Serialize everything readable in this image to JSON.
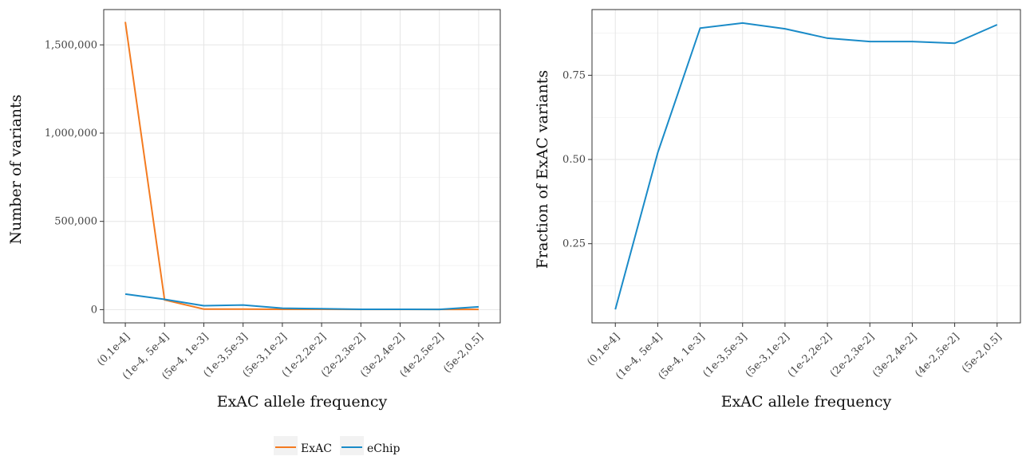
{
  "legend": {
    "items": [
      {
        "label": "ExAC",
        "color": "#f47b20"
      },
      {
        "label": "eChip",
        "color": "#1a8bc8"
      }
    ]
  },
  "chart_data": [
    {
      "type": "line",
      "xlabel": "ExAC allele frequency",
      "ylabel": "Number of variants",
      "categories": [
        "(0,1e-4]",
        "(1e-4, 5e-4]",
        "(5e-4, 1e-3]",
        "(1e-3,5e-3]",
        "(5e-3,1e-2]",
        "(1e-2,2e-2]",
        "(2e-2,3e-2]",
        "(3e-2,4e-2]",
        "(4e-2,5e-2]",
        "(5e-2,0.5]"
      ],
      "ylim": [
        -75000,
        1700000
      ],
      "yticks": [
        0,
        500000,
        1000000,
        1500000
      ],
      "ytick_labels": [
        "0",
        "500,000",
        "1,000,000",
        "1,500,000"
      ],
      "grid": true,
      "series": [
        {
          "name": "ExAC",
          "color": "#f47b20",
          "values": [
            1630000,
            55000,
            3000,
            3000,
            2000,
            1500,
            1000,
            1000,
            1000,
            1000
          ]
        },
        {
          "name": "eChip",
          "color": "#1a8bc8",
          "values": [
            88000,
            58000,
            22000,
            26000,
            8000,
            5000,
            2000,
            2000,
            1000,
            16000
          ]
        }
      ]
    },
    {
      "type": "line",
      "xlabel": "ExAC allele frequency",
      "ylabel": "Fraction of ExAC variants",
      "categories": [
        "(0,1e-4]",
        "(1e-4, 5e-4]",
        "(5e-4, 1e-3]",
        "(1e-3,5e-3]",
        "(5e-3,1e-2]",
        "(1e-2,2e-2]",
        "(2e-2,3e-2]",
        "(3e-2,4e-2]",
        "(4e-2,5e-2]",
        "(5e-2,0.5]"
      ],
      "ylim": [
        0.015,
        0.945
      ],
      "yticks": [
        0.25,
        0.5,
        0.75
      ],
      "ytick_labels": [
        "0.25",
        "0.50",
        "0.75"
      ],
      "grid": true,
      "series": [
        {
          "color": "#1a8bc8",
          "values": [
            0.055,
            0.52,
            0.89,
            0.905,
            0.888,
            0.86,
            0.85,
            0.85,
            0.845,
            0.9
          ]
        }
      ]
    }
  ]
}
